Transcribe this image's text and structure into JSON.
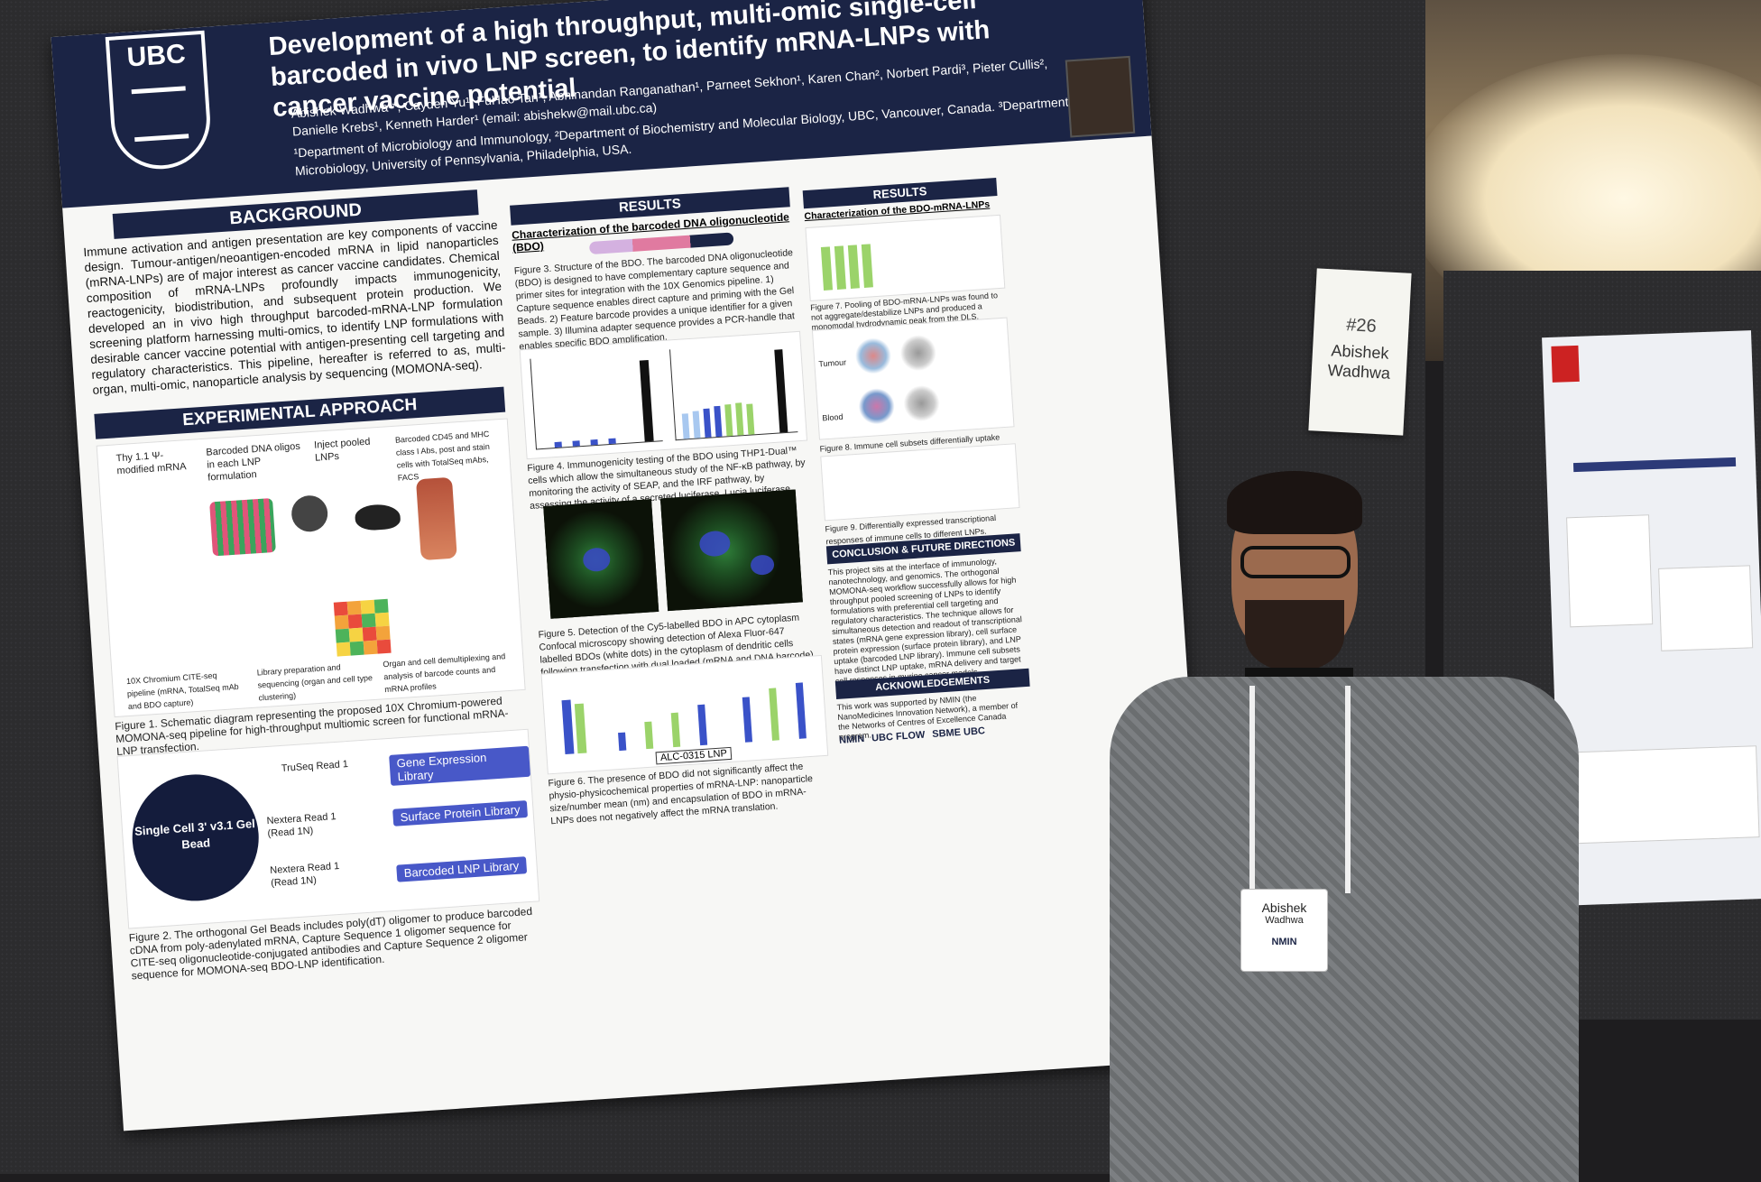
{
  "poster": {
    "logo_text": "UBC",
    "title": "Development of a high throughput, multi-omic single-cell barcoded in vivo LNP screen, to identify mRNA-LNPs with cancer vaccine potential",
    "authors": "Abishek Wadhwa¹*, Cayden Yu¹, FuHao Tan¹, Abhinandan Ranganathan¹, Parneet Sekhon¹, Karen Chan², Norbert Pardi³, Pieter Cullis², Danielle Krebs¹, Kenneth Harder¹ (email: abishekw@mail.ubc.ca)",
    "affiliations": "¹Department of Microbiology and Immunology, ²Department of Biochemistry and Molecular Biology, UBC, Vancouver, Canada. ³Department of Microbiology, University of Pennsylvania, Philadelphia, USA.",
    "background": {
      "heading": "BACKGROUND",
      "text": "Immune activation and antigen presentation are key components of vaccine design. Tumour-antigen/neoantigen-encoded mRNA in lipid nanoparticles (mRNA-LNPs) are of major interest as cancer vaccine candidates. Chemical composition of mRNA-LNPs profoundly impacts immunogenicity, reactogenicity, biodistribution, and subsequent protein production. We developed an in vivo high throughput barcoded-mRNA-LNP formulation screening platform harnessing multi-omics, to identify LNP formulations with desirable cancer vaccine potential with antigen-presenting cell targeting and regulatory characteristics. This pipeline, hereafter is referred to as, multi-organ, multi-omic, nanoparticle analysis by sequencing (MOMONA-seq)."
    },
    "experimental": {
      "heading": "EXPERIMENTAL APPROACH",
      "labels": [
        "Thy 1.1 Ψ-modified mRNA",
        "Barcoded DNA oligos in each LNP formulation",
        "Inject pooled LNPs",
        "Barcoded CD45 and MHC class I Abs, post and stain cells with TotalSeq mAbs, FACS"
      ],
      "pipeline_labels": [
        "10X Chromium CITE-seq pipeline (mRNA, TotalSeq mAb and BDO capture)",
        "Library preparation and sequencing (organ and cell type clustering)",
        "Organ and cell demultiplexing and analysis of barcode counts and mRNA profiles"
      ],
      "figure1": "Figure 1. Schematic diagram representing the proposed 10X Chromium-powered MOMONA-seq pipeline for high-throughput multiomic screen for functional mRNA-LNP transfection."
    },
    "gel": {
      "bead_label": "Single Cell 3' v3.1 Gel Bead",
      "reads": [
        "TruSeq Read 1",
        "Nextera Read 1 (Read 1N)",
        "Nextera Read 1 (Read 1N)"
      ],
      "libraries": [
        "Gene Expression Library",
        "Surface Protein Library",
        "Barcoded LNP Library"
      ],
      "figure2": "Figure 2. The orthogonal Gel Beads includes poly(dT) oligomer to produce barcoded cDNA from poly-adenylated mRNA, Capture Sequence 1 oligomer sequence for CITE-seq oligonucleotide-conjugated antibodies and Capture Sequence 2 oligomer sequence for MOMONA-seq BDO-LNP identification."
    },
    "results": {
      "heading": "RESULTS",
      "subheading": "Characterization of the barcoded DNA oligonucleotide (BDO)",
      "figure3": "Figure 3. Structure of the BDO. The barcoded DNA oligonucleotide (BDO) is designed to have complementary capture sequence and primer sites for integration with the 10X Genomics pipeline. 1) Capture sequence enables direct capture and priming with the Gel Beads. 2) Feature barcode provides a unique identifier for a given sample. 3) Illumina adapter sequence provides a PCR-handle that enables specific BDO amplification.",
      "figure4": "Figure 4. Immunogenicity testing of the BDO using THP1-Dual™ cells which allow the simultaneous study of the NF-κB pathway, by monitoring the activity of SEAP, and the IRF pathway, by assessing the activity of a secreted luciferase, Lucia luciferase.",
      "figure5": "Figure 5. Detection of the Cy5-labelled BDO in APC cytoplasm Confocal microscopy showing detection of Alexa Fluor-647 labelled BDOs (white dots) in the cytoplasm of dendritic cells following transfection with dual loaded (mRNA and DNA barcode) LNPs.",
      "figure6": "Figure 6. The presence of BDO did not significantly affect the physio-physicochemical properties of mRNA-LNP: nanoparticle size/number mean (nm) and encapsulation of BDO in mRNA-LNPs does not negatively affect the mRNA translation.",
      "alc_label": "ALC-0315 LNP"
    },
    "results2": {
      "heading": "RESULTS",
      "subheading": "Characterization of the BDO-mRNA-LNPs",
      "figure7": "Figure 7. Pooling of BDO-mRNA-LNPs was found to not aggregate/destabilize LNPs and produced a monomodal hydrodynamic peak from the DLS.",
      "tissue_labels": [
        "Tumour",
        "Blood"
      ],
      "figure8": "Figure 8. Immune cell subsets differentially uptake LNPs.",
      "figure9": "Figure 9. Differentially expressed transcriptional responses of immune cells to different LNPs."
    },
    "conclusion": {
      "heading": "CONCLUSION & FUTURE DIRECTIONS",
      "text": "This project sits at the interface of immunology, nanotechnology, and genomics. The orthogonal MOMONA-seq workflow successfully allows for high throughput pooled screening of LNPs to identify formulations with preferential cell targeting and regulatory characteristics. The technique allows for simultaneous detection and readout of transcriptional states (mRNA gene expression library), cell surface protein expression (surface protein library), and LNP uptake (barcoded LNP library). Immune cell subsets have distinct LNP uptake, mRNA delivery and target cell responses in murine cancer models."
    },
    "acknowledgements": {
      "heading": "ACKNOWLEDGEMENTS",
      "text": "This work was supported by NMIN (the NanoMedicines Innovation Network), a member of the Networks of Centres of Excellence Canada program.",
      "logos": [
        "NMIN",
        "UBC FLOW",
        "SBME UBC"
      ]
    }
  },
  "sign": {
    "number": "#26",
    "name": "Abishek Wadhwa"
  },
  "badge": {
    "first": "Abishek",
    "last": "Wadhwa",
    "org": "NMIN"
  },
  "colors": {
    "poster_navy": "#1b2445",
    "accent_pink": "#e07aa0",
    "bar_blue": "#3a52c8",
    "bar_green": "#9bd36a"
  }
}
